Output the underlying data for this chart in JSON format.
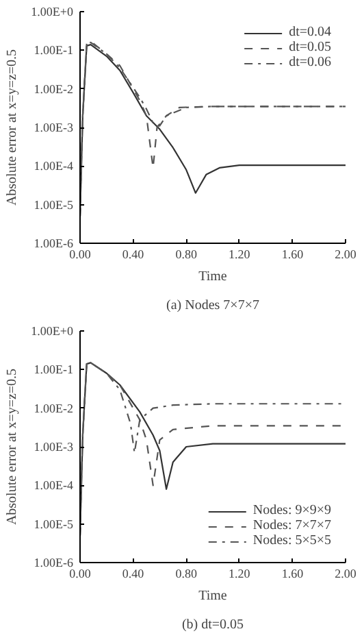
{
  "chart_data": [
    {
      "type": "line",
      "xlabel": "Time",
      "ylabel": "Absolute error at x=y=z=0.5",
      "log": "y",
      "grid": false,
      "legend": "top right",
      "marker": "none",
      "xlim": [
        0,
        2
      ],
      "xticks": [
        {
          "value": 0,
          "label": "0.00"
        },
        {
          "value": 0.4,
          "label": "0.40"
        },
        {
          "value": 0.8,
          "label": "0.80"
        },
        {
          "value": 1.2,
          "label": "1.20"
        },
        {
          "value": 1.6,
          "label": "1.60"
        },
        {
          "value": 2,
          "label": "2.00"
        }
      ],
      "ylim": [
        1e-06,
        1
      ],
      "yticks": [
        {
          "value": 1e-06,
          "label": "1.00E-6"
        },
        {
          "value": 1e-05,
          "label": "1.00E-5"
        },
        {
          "value": 0.0001,
          "label": "1.00E-4"
        },
        {
          "value": 0.001,
          "label": "1.00E-3"
        },
        {
          "value": 0.01,
          "label": "1.00E-2"
        },
        {
          "value": 0.1,
          "label": "1.00E-1"
        },
        {
          "value": 1,
          "label": "1.00E+0"
        }
      ],
      "annotations": [
        "(a) Nodes 7×7×7"
      ],
      "series": [
        {
          "name": "dt=0.04",
          "color": "#333333",
          "line_style": "solid",
          "x": [
            0,
            0.02,
            0.05,
            0.08,
            0.2,
            0.3,
            0.4,
            0.5,
            0.6,
            0.7,
            0.8,
            0.85,
            0.87,
            0.9,
            0.95,
            1.05,
            1.2,
            1.6,
            2.0
          ],
          "values": [
            5e-06,
            0.002,
            0.13,
            0.14,
            0.07,
            0.03,
            0.008,
            0.002,
            0.0009,
            0.0003,
            8e-05,
            3e-05,
            2e-05,
            3e-05,
            6e-05,
            9e-05,
            0.000105,
            0.000105,
            0.000105
          ]
        },
        {
          "name": "dt=0.05",
          "color": "#555555",
          "line_style": "dashed",
          "x": [
            0,
            0.02,
            0.05,
            0.08,
            0.2,
            0.3,
            0.45,
            0.5,
            0.55,
            0.58,
            0.65,
            0.75,
            1.0,
            1.5,
            2.0
          ],
          "values": [
            5e-06,
            0.002,
            0.15,
            0.17,
            0.08,
            0.04,
            0.005,
            0.002,
            9e-05,
            0.001,
            0.002,
            0.0033,
            0.0035,
            0.0035,
            0.0035
          ]
        },
        {
          "name": "dt=0.06",
          "color": "#555555",
          "line_style": "dashdot",
          "x": [
            0,
            0.02,
            0.05,
            0.08,
            0.2,
            0.3,
            0.45,
            0.5,
            0.55,
            0.6,
            0.65,
            0.8,
            1.0,
            1.5,
            2.0
          ],
          "values": [
            5e-06,
            0.002,
            0.14,
            0.16,
            0.08,
            0.035,
            0.006,
            0.003,
            0.0013,
            0.0011,
            0.002,
            0.0033,
            0.0035,
            0.0035,
            0.0035
          ]
        }
      ]
    },
    {
      "type": "line",
      "xlabel": "Time",
      "ylabel": "Absolute error at x=y=z=0.5",
      "log": "y",
      "grid": false,
      "legend": "bottom right",
      "marker": "none",
      "xlim": [
        0,
        2
      ],
      "xticks": [
        {
          "value": 0,
          "label": "0.00"
        },
        {
          "value": 0.4,
          "label": "0.40"
        },
        {
          "value": 0.8,
          "label": "0.80"
        },
        {
          "value": 1.2,
          "label": "1.20"
        },
        {
          "value": 1.6,
          "label": "1.60"
        },
        {
          "value": 2,
          "label": "2.00"
        }
      ],
      "ylim": [
        1e-06,
        1
      ],
      "yticks": [
        {
          "value": 1e-06,
          "label": "1.00E-6"
        },
        {
          "value": 1e-05,
          "label": "1.00E-5"
        },
        {
          "value": 0.0001,
          "label": "1.00E-4"
        },
        {
          "value": 0.001,
          "label": "1.00E-3"
        },
        {
          "value": 0.01,
          "label": "1.00E-2"
        },
        {
          "value": 0.1,
          "label": "1.00E-1"
        },
        {
          "value": 1,
          "label": "1.00E+0"
        }
      ],
      "annotations": [
        "(b) dt=0.05"
      ],
      "series": [
        {
          "name": "Nodes: 9×9×9",
          "color": "#333333",
          "line_style": "solid",
          "x": [
            0,
            0.02,
            0.05,
            0.08,
            0.2,
            0.3,
            0.45,
            0.55,
            0.6,
            0.65,
            0.7,
            0.8,
            1.0,
            1.5,
            2.0
          ],
          "values": [
            5e-06,
            0.002,
            0.14,
            0.15,
            0.08,
            0.04,
            0.008,
            0.002,
            0.0008,
            8e-05,
            0.0004,
            0.001,
            0.0012,
            0.0012,
            0.0012
          ]
        },
        {
          "name": "Nodes: 7×7×7",
          "color": "#555555",
          "line_style": "dashed",
          "x": [
            0,
            0.02,
            0.05,
            0.08,
            0.2,
            0.3,
            0.45,
            0.5,
            0.55,
            0.6,
            0.7,
            1.0,
            1.5,
            2.0
          ],
          "values": [
            5e-06,
            0.002,
            0.14,
            0.15,
            0.08,
            0.04,
            0.005,
            0.0015,
            0.0001,
            0.0015,
            0.0028,
            0.0035,
            0.0035,
            0.0035
          ]
        },
        {
          "name": "Nodes: 5×5×5",
          "color": "#555555",
          "line_style": "dashdot",
          "x": [
            0,
            0.02,
            0.05,
            0.08,
            0.2,
            0.3,
            0.38,
            0.41,
            0.45,
            0.55,
            0.7,
            1.0,
            1.5,
            2.0
          ],
          "values": [
            5e-06,
            0.002,
            0.14,
            0.15,
            0.08,
            0.03,
            0.004,
            0.0007,
            0.005,
            0.01,
            0.012,
            0.013,
            0.013,
            0.013
          ]
        }
      ]
    }
  ]
}
